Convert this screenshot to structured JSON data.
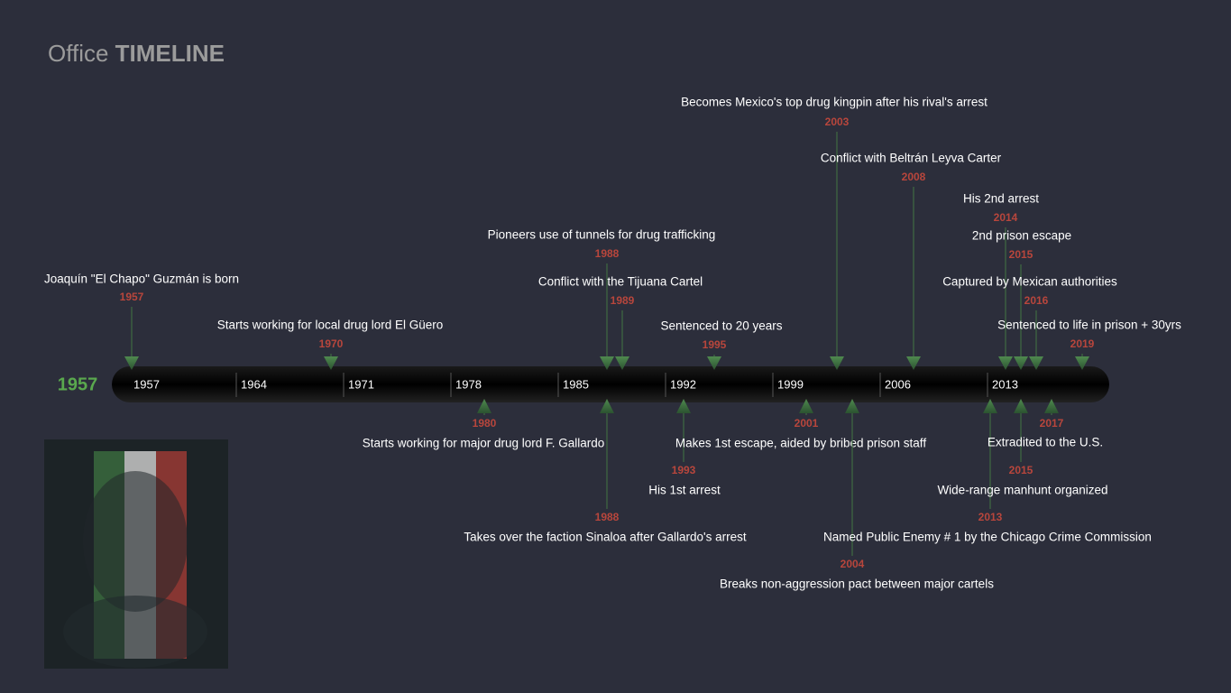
{
  "header": {
    "brand": "Office",
    "title": "TIMELINE"
  },
  "timeline": {
    "start_label": "1957",
    "ticks": [
      1957,
      1964,
      1971,
      1978,
      1985,
      1992,
      1999,
      2006,
      2013
    ],
    "events_above": [
      {
        "year": 1957,
        "text": "Joaquín \"El Chapo\" Guzmán is born"
      },
      {
        "year": 1970,
        "text": "Starts working for local drug lord El Güero"
      },
      {
        "year": 1988,
        "text": "Pioneers use of tunnels for drug trafficking"
      },
      {
        "year": 1989,
        "text": "Conflict with the Tijuana Cartel"
      },
      {
        "year": 1995,
        "text": "Sentenced to 20 years"
      },
      {
        "year": 2003,
        "text": "Becomes Mexico's top drug kingpin after his rival's arrest"
      },
      {
        "year": 2008,
        "text": "Conflict with Beltrán Leyva Carter"
      },
      {
        "year": 2014,
        "text": "His 2nd arrest"
      },
      {
        "year": 2015,
        "text": "2nd prison escape"
      },
      {
        "year": 2016,
        "text": "Captured by Mexican authorities"
      },
      {
        "year": 2019,
        "text": "Sentenced to life in prison + 30yrs"
      }
    ],
    "events_below": [
      {
        "year": 1980,
        "text": "Starts working for major drug lord F. Gallardo"
      },
      {
        "year": 1988,
        "text": "Takes over the faction Sinaloa after Gallardo's arrest"
      },
      {
        "year": 1993,
        "text": "His 1st arrest"
      },
      {
        "year": 2001,
        "text": "Makes 1st escape, aided by bribed prison staff"
      },
      {
        "year": 2004,
        "text": "Breaks non-aggression pact between major cartels"
      },
      {
        "year": 2013,
        "text": "Named Public Enemy # 1 by the Chicago Crime Commission"
      },
      {
        "year": 2015,
        "text": "Wide-range manhunt organized"
      },
      {
        "year": 2017,
        "text": "Extradited to the U.S."
      }
    ]
  }
}
